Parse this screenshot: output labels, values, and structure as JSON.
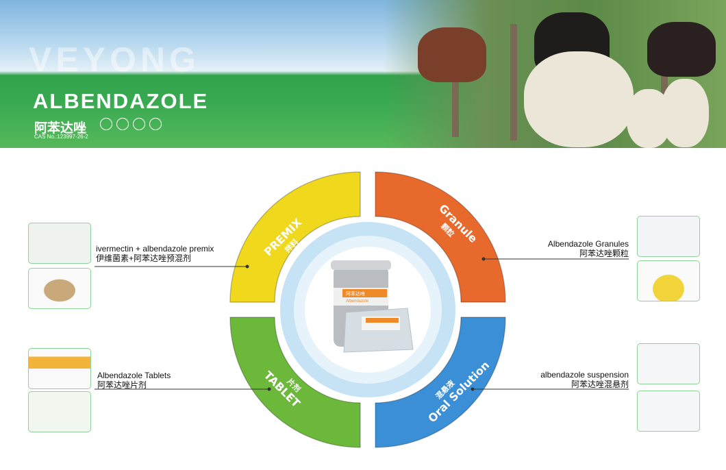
{
  "banner": {
    "brand": "VEYONG",
    "title": "ALBENDAZOLE",
    "cn_title": "阿苯达唑",
    "cas": "CAS No.:123997-26-2",
    "icons": [
      "cattle-icon",
      "sheep-icon",
      "pig-icon",
      "poultry-icon"
    ]
  },
  "segments": [
    {
      "id": "premix",
      "en": "PREMIX",
      "cn": "拌料",
      "color": "#f0d81c"
    },
    {
      "id": "granule",
      "en": "Granule",
      "cn": "颗粒",
      "color": "#e8692c"
    },
    {
      "id": "tablet",
      "en": "TABLET",
      "cn": "片剂",
      "color": "#6cb83a"
    },
    {
      "id": "oral",
      "en": "Oral Solution",
      "cn": "混悬液",
      "color": "#3a8fd6"
    }
  ],
  "products": {
    "premix": {
      "en": "ivermectin + albendazole premix",
      "cn": "伊维菌素+阿苯达唑预混剂"
    },
    "granule": {
      "en": "Albendazole Granules",
      "cn": "阿苯达唑颗粒"
    },
    "tablet": {
      "en": "Albendazole Tablets",
      "cn": "阿苯达唑片剂"
    },
    "oral": {
      "en": "albendazole suspension",
      "cn": "阿苯达唑混悬剂"
    }
  },
  "center": {
    "label_cn": "阿苯达唑",
    "label_en": "Albendazole"
  }
}
